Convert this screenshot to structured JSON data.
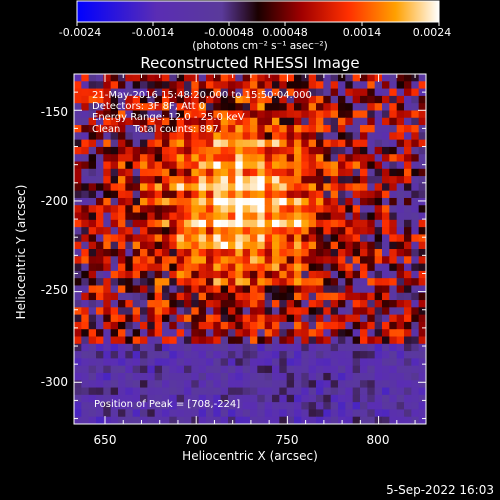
{
  "colorbar": {
    "ticks": [
      "-0.0024",
      "-0.0014",
      "-0.00048",
      "0.00048",
      "0.0014",
      "0.0024"
    ],
    "unit_label": "(photons cm⁻² s⁻¹ asec⁻²)",
    "range": [
      -0.0024,
      0.0024
    ]
  },
  "chart_data": {
    "type": "heatmap",
    "title": "Reconstructed RHESSI Image",
    "xlabel": "Heliocentric X (arcsec)",
    "ylabel": "Heliocentric Y (arcsec)",
    "xlim": [
      633,
      826
    ],
    "ylim": [
      -323,
      -130
    ],
    "xticks": [
      650,
      700,
      750,
      800
    ],
    "yticks": [
      -150,
      -200,
      -250,
      -300
    ],
    "annotations": [
      "21-May-2016 15:48:20.000 to 15:50:04.000",
      "Detectors: 3F 8F, Att 0",
      "Energy Range: 12.0 - 25.0 keV",
      "Clean    Total counts: 897."
    ],
    "peak_label": "Position of Peak = [708,-224]",
    "peak_position": [
      708,
      -224
    ],
    "color_scale": "red-temperature with blue negative"
  },
  "timestamp": "5-Sep-2022 16:03"
}
